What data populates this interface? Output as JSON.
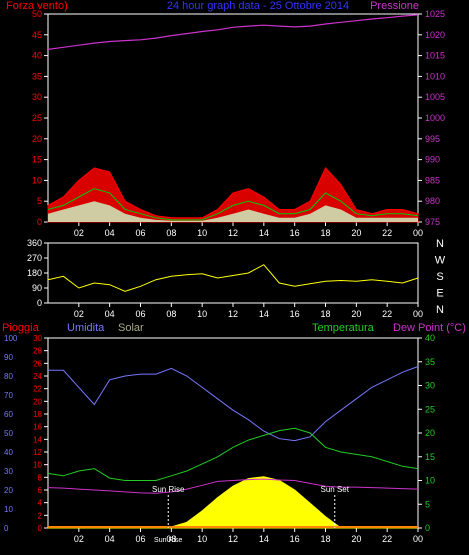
{
  "colors": {
    "background": "#000000",
    "frame": "#ffffff",
    "wind": "#ff0000",
    "gust": "#00cc00",
    "avg_wind": "#ccffcc",
    "pressure": "#cc33cc",
    "title": "#3333ff",
    "direction": "#ffff00",
    "rain": "#ff00ff",
    "humidity": "#7777ff",
    "solar": "#ffff00",
    "solar_label": "#aaaa88",
    "temperature": "#22cc22",
    "dewpoint": "#cc33cc",
    "left_axis_red": "#ff0000",
    "right_axis_green": "#22cc22"
  },
  "chart_data": [
    {
      "type": "line",
      "name": "wind-pressure",
      "title": "24 hour graph data - 25 Ottobre 2014",
      "left_label": "Forza vento)",
      "right_label": "Pressione",
      "x_ticks": [
        "02",
        "04",
        "06",
        "08",
        "10",
        "12",
        "14",
        "16",
        "18",
        "20",
        "22",
        "00"
      ],
      "y_left_ticks": [
        "0",
        "5",
        "10",
        "15",
        "20",
        "25",
        "30",
        "35",
        "40",
        "45",
        "50"
      ],
      "y_right_ticks": [
        "975",
        "980",
        "985",
        "990",
        "995",
        "1000",
        "1005",
        "1010",
        "1015",
        "1020",
        "1025"
      ],
      "ylim_left": [
        0,
        50
      ],
      "ylim_right": [
        975,
        1025
      ],
      "x": [
        0,
        1,
        2,
        3,
        4,
        5,
        6,
        7,
        8,
        9,
        10,
        11,
        12,
        13,
        14,
        15,
        16,
        17,
        18,
        19,
        20,
        21,
        22,
        23,
        24
      ],
      "series": [
        {
          "role": "pressure",
          "axis": "right",
          "values": [
            1016.5,
            1017,
            1017.5,
            1018,
            1018.4,
            1018.6,
            1018.8,
            1019.2,
            1019.8,
            1020.3,
            1020.8,
            1021.2,
            1021.8,
            1022.1,
            1022.3,
            1022.1,
            1021.9,
            1022.1,
            1022.6,
            1023,
            1023.4,
            1023.8,
            1024.1,
            1024.5,
            1024.8
          ]
        },
        {
          "role": "wind",
          "axis": "left",
          "values": [
            4,
            6,
            10,
            13,
            12,
            5,
            3,
            1.5,
            1,
            1,
            1,
            3,
            7,
            8,
            6,
            3,
            3,
            5,
            13,
            9,
            3,
            2,
            3,
            3,
            2
          ]
        },
        {
          "role": "gust",
          "axis": "left",
          "values": [
            3,
            4,
            6,
            8,
            7,
            3,
            2,
            1,
            0.5,
            0.5,
            0.5,
            2,
            4,
            5,
            4,
            2,
            2,
            3,
            7,
            5,
            2,
            1.5,
            2,
            2,
            1.5
          ]
        },
        {
          "role": "avg-wind",
          "axis": "left",
          "values": [
            2,
            3,
            4,
            5,
            4,
            2,
            1,
            0.5,
            0.3,
            0.3,
            0.3,
            1,
            2,
            3,
            2,
            1,
            1,
            2,
            4,
            3,
            1,
            1,
            1,
            1,
            1
          ]
        }
      ]
    },
    {
      "type": "line",
      "name": "wind-direction",
      "x_ticks": [
        "02",
        "04",
        "06",
        "08",
        "10",
        "12",
        "14",
        "16",
        "18",
        "20",
        "22",
        "00"
      ],
      "y_left_ticks": [
        "0",
        "90",
        "180",
        "270",
        "360"
      ],
      "ylim": [
        0,
        360
      ],
      "compass_labels": [
        "N",
        "W",
        "S",
        "E",
        "N"
      ],
      "x": [
        0,
        1,
        2,
        3,
        4,
        5,
        6,
        7,
        8,
        9,
        10,
        11,
        12,
        13,
        14,
        15,
        16,
        17,
        18,
        19,
        20,
        21,
        22,
        23,
        24
      ],
      "series": [
        {
          "role": "direction",
          "values": [
            140,
            160,
            90,
            120,
            110,
            70,
            100,
            140,
            160,
            170,
            175,
            150,
            165,
            180,
            230,
            120,
            100,
            115,
            130,
            135,
            130,
            140,
            130,
            120,
            150
          ]
        }
      ]
    },
    {
      "type": "line",
      "name": "humidity-temperature",
      "left_labels": [
        "Pioggia",
        "Umidita",
        "Solar"
      ],
      "right_labels": [
        "Temperatura",
        "Dew Point (°C)"
      ],
      "x_ticks": [
        "02",
        "04",
        "06",
        "08",
        "10",
        "12",
        "14",
        "16",
        "18",
        "20",
        "22",
        "00"
      ],
      "x_extra_labels": [
        "Sun Rise",
        "Sun Set"
      ],
      "x_bottom_marker": "Sun Rise",
      "y_axis_humidity_ticks": [
        "0",
        "10",
        "20",
        "30",
        "40",
        "50",
        "60",
        "70",
        "80",
        "90",
        "100"
      ],
      "y_axis_rain_ticks": [
        "0",
        "2",
        "4",
        "6",
        "8",
        "10",
        "12",
        "14",
        "16",
        "18",
        "20",
        "22",
        "24",
        "26",
        "28",
        "30"
      ],
      "y_axis_temp_ticks": [
        "0",
        "5",
        "10",
        "15",
        "20",
        "25",
        "30",
        "35",
        "40"
      ],
      "ylim_humidity": [
        0,
        100
      ],
      "ylim_temp": [
        0,
        40
      ],
      "sunrise_hour": 7.8,
      "sunset_hour": 18.6,
      "x": [
        0,
        1,
        2,
        3,
        4,
        5,
        6,
        7,
        8,
        9,
        10,
        11,
        12,
        13,
        14,
        15,
        16,
        17,
        18,
        19,
        20,
        21,
        22,
        23,
        24
      ],
      "series": [
        {
          "role": "humidity",
          "axis": "humidity",
          "values": [
            83,
            83,
            74,
            65,
            78,
            80,
            81,
            81,
            84,
            80,
            74,
            68,
            62,
            57,
            51,
            47,
            46,
            48,
            56,
            62,
            68,
            74,
            78,
            82,
            85
          ]
        },
        {
          "role": "temperature",
          "axis": "temp",
          "values": [
            11.5,
            11,
            12,
            12.5,
            10.5,
            10,
            10,
            10,
            11,
            12,
            13.5,
            15,
            17,
            18.5,
            19.5,
            20.5,
            21,
            20,
            17,
            16,
            15.5,
            15,
            14,
            13,
            12.5
          ]
        },
        {
          "role": "dewpoint",
          "axis": "temp",
          "values": [
            8.5,
            8.4,
            8.2,
            8,
            7.8,
            7.6,
            7.4,
            7.3,
            7.6,
            8.2,
            9,
            9.8,
            10,
            10.2,
            10.3,
            10.1,
            10,
            9.4,
            8.8,
            8.6,
            8.6,
            8.5,
            8.4,
            8.3,
            8.2
          ]
        },
        {
          "role": "solar",
          "axis": "humidity",
          "values": [
            0,
            0,
            0,
            0,
            0,
            0,
            0,
            0,
            0.5,
            3,
            9,
            16,
            22,
            26,
            27,
            25,
            20,
            13,
            6,
            0,
            0,
            0,
            0,
            0,
            0
          ]
        }
      ]
    }
  ]
}
